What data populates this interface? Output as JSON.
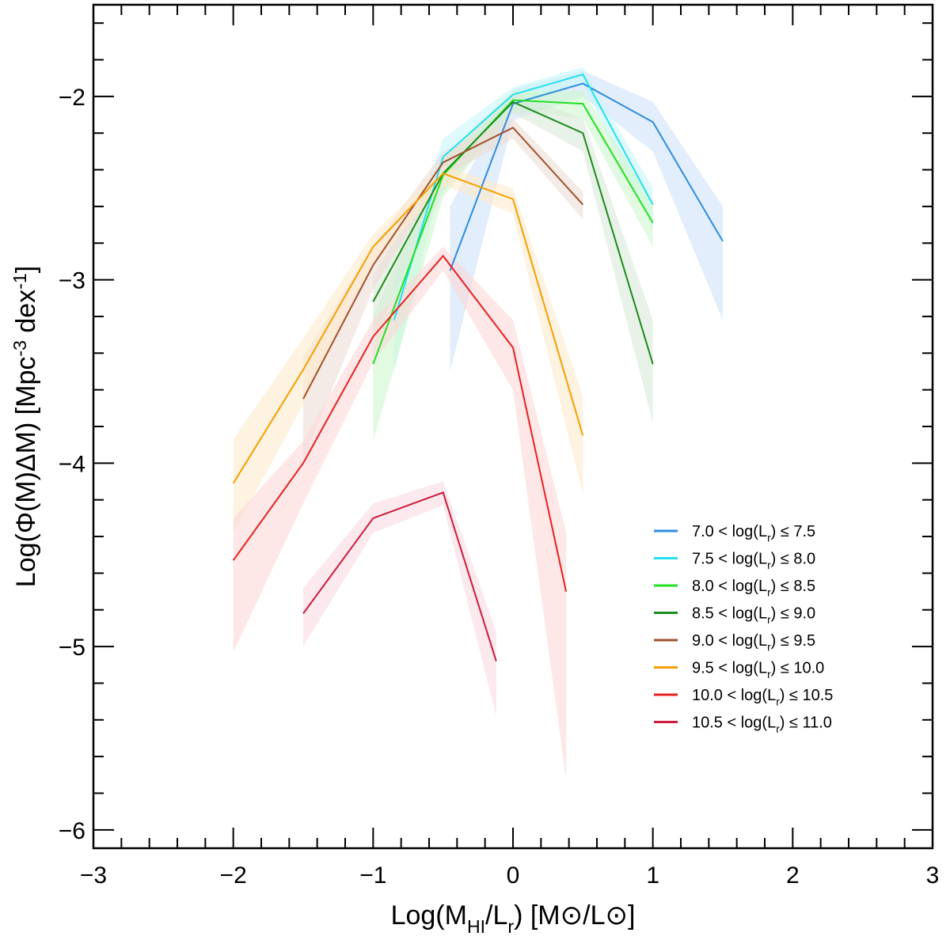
{
  "chart_data": {
    "type": "line",
    "title": "",
    "xlabel": "Log(M_HI/L_r) [M⊙/L⊙]",
    "ylabel": "Log(Φ(M)ΔM) [Mpc^-3 dex^-1]",
    "xlim": [
      -3,
      3
    ],
    "ylim": [
      -6.1,
      -1.5
    ],
    "xticks": [
      -3,
      -2,
      -1,
      0,
      1,
      2,
      3
    ],
    "yticks": [
      -6,
      -5,
      -4,
      -3,
      -2
    ],
    "legend_position": "lower-right",
    "grid": false,
    "series": [
      {
        "name": "7.0 < log(L_r) ≤ 7.5",
        "color": "#2e8de0",
        "band_color": "#cfe3f8",
        "x": [
          -0.45,
          0.0,
          0.5,
          1.0,
          1.5
        ],
        "y": [
          -2.95,
          -2.04,
          -1.93,
          -2.14,
          -2.79
        ],
        "lo": [
          -3.5,
          -2.13,
          -2.0,
          -2.3,
          -3.22
        ],
        "hi": [
          -2.6,
          -1.96,
          -1.86,
          -2.03,
          -2.6
        ]
      },
      {
        "name": "7.5 < log(L_r) ≤ 8.0",
        "color": "#22e0f0",
        "band_color": "#c8f6fa",
        "x": [
          -0.85,
          -0.5,
          0.0,
          0.5,
          1.0
        ],
        "y": [
          -3.22,
          -2.33,
          -1.99,
          -1.88,
          -2.59
        ],
        "lo": [
          -3.5,
          -2.42,
          -2.05,
          -1.93,
          -2.72
        ],
        "hi": [
          -3.0,
          -2.23,
          -1.95,
          -1.84,
          -2.5
        ]
      },
      {
        "name": "8.0 < log(L_r) ≤ 8.5",
        "color": "#22e022",
        "band_color": "#cdf6cd",
        "x": [
          -1.0,
          -0.5,
          0.0,
          0.5,
          1.0
        ],
        "y": [
          -3.46,
          -2.43,
          -2.02,
          -2.04,
          -2.69
        ],
        "lo": [
          -3.88,
          -2.55,
          -2.08,
          -2.12,
          -2.82
        ],
        "hi": [
          -3.2,
          -2.33,
          -1.97,
          -1.97,
          -2.58
        ]
      },
      {
        "name": "8.5 < log(L_r) ≤ 9.0",
        "color": "#1a8c1a",
        "band_color": "#d9ead9",
        "x": [
          -1.0,
          -0.5,
          0.0,
          0.5,
          1.0
        ],
        "y": [
          -3.12,
          -2.42,
          -2.03,
          -2.2,
          -3.46
        ],
        "lo": [
          -3.32,
          -2.52,
          -2.09,
          -2.3,
          -3.78
        ],
        "hi": [
          -2.98,
          -2.34,
          -1.98,
          -2.12,
          -3.22
        ]
      },
      {
        "name": "9.0 < log(L_r) ≤ 9.5",
        "color": "#a0522d",
        "band_color": "#ecdcd5",
        "x": [
          -1.5,
          -1.0,
          -0.5,
          0.0,
          0.5
        ],
        "y": [
          -3.65,
          -2.92,
          -2.36,
          -2.17,
          -2.59
        ],
        "lo": [
          -3.98,
          -3.05,
          -2.44,
          -2.23,
          -2.67
        ],
        "hi": [
          -3.42,
          -2.82,
          -2.3,
          -2.12,
          -2.52
        ]
      },
      {
        "name": "9.5 < log(L_r) ≤ 10.0",
        "color": "#f5a000",
        "band_color": "#fdeacc",
        "x": [
          -2.0,
          -1.5,
          -1.0,
          -0.5,
          0.0,
          0.5
        ],
        "y": [
          -4.11,
          -3.49,
          -2.82,
          -2.42,
          -2.56,
          -3.85
        ],
        "lo": [
          -4.38,
          -3.68,
          -2.92,
          -2.48,
          -2.64,
          -4.17
        ],
        "hi": [
          -3.87,
          -3.32,
          -2.75,
          -2.38,
          -2.5,
          -3.64
        ]
      },
      {
        "name": "10.0 < log(L_r) ≤ 10.5",
        "color": "#e82020",
        "band_color": "#fbd7d7",
        "x": [
          -2.0,
          -1.5,
          -1.0,
          -0.5,
          0.0,
          0.38
        ],
        "y": [
          -4.53,
          -4.0,
          -3.31,
          -2.87,
          -3.37,
          -4.7
        ],
        "lo": [
          -5.03,
          -4.22,
          -3.45,
          -2.95,
          -3.6,
          -5.72
        ],
        "hi": [
          -4.3,
          -3.88,
          -3.22,
          -2.82,
          -3.22,
          -4.38
        ]
      },
      {
        "name": "10.5 < log(L_r) ≤ 11.0",
        "color": "#cc1a3a",
        "band_color": "#f8dbe2",
        "x": [
          -1.5,
          -1.0,
          -0.5,
          -0.12
        ],
        "y": [
          -4.82,
          -4.3,
          -4.16,
          -5.08
        ],
        "lo": [
          -5.0,
          -4.38,
          -4.23,
          -5.38
        ],
        "hi": [
          -4.68,
          -4.22,
          -4.1,
          -4.92
        ]
      }
    ]
  }
}
